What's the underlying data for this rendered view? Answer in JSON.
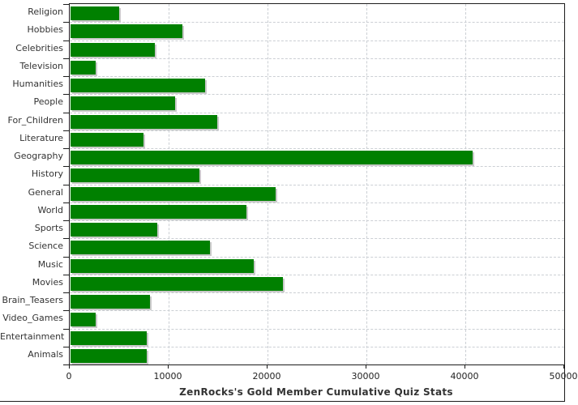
{
  "chart_data": {
    "type": "bar",
    "orientation": "horizontal",
    "title": "ZenRocks's Gold Member Cumulative Quiz Stats",
    "categories": [
      "Religion",
      "Hobbies",
      "Celebrities",
      "Television",
      "Humanities",
      "People",
      "For_Children",
      "Literature",
      "Geography",
      "History",
      "General",
      "World",
      "Sports",
      "Science",
      "Music",
      "Movies",
      "Brain_Teasers",
      "Video_Games",
      "Entertainment",
      "Animals"
    ],
    "values": [
      4900,
      11300,
      8500,
      2500,
      13600,
      10600,
      14800,
      7400,
      40650,
      13000,
      20700,
      17800,
      8800,
      14100,
      18500,
      21500,
      8000,
      2500,
      7700,
      7700
    ],
    "xlabel": "",
    "ylabel": "",
    "xlim": [
      0,
      50000
    ],
    "x_ticks": [
      0,
      10000,
      20000,
      30000,
      40000,
      50000
    ],
    "x_tick_labels": [
      "0",
      "10000",
      "20000",
      "30000",
      "40000",
      "50000"
    ],
    "grid": "dashed vertical at major x ticks + dashed horizontal at category boundaries",
    "legend": "none",
    "colors": {
      "bar": "#008000",
      "bar_shadow": "#c9c9c9",
      "grid": "#cbcfd4",
      "axis": "#1c1c1c",
      "text": "#333333",
      "background": "#ffffff"
    }
  }
}
